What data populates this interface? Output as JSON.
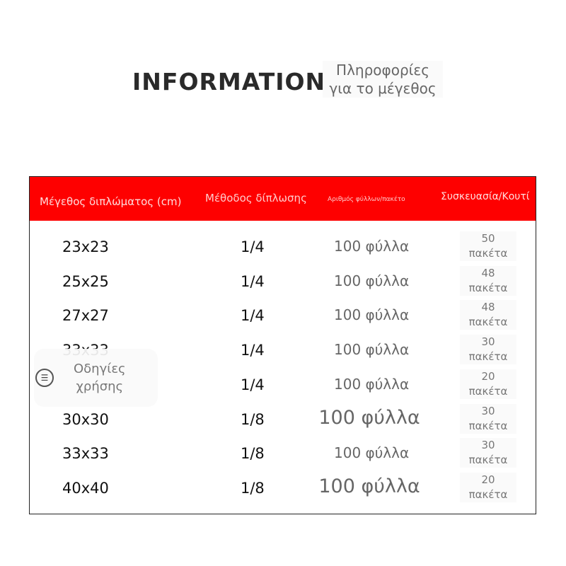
{
  "header": {
    "title": "INFORMATION",
    "subtitle_line1": "Πληροφορίες",
    "subtitle_line2": "για το μέγεθος"
  },
  "table": {
    "columns": [
      "Μέγεθος διπλώματος (cm)",
      "Μέθοδος δίπλωσης",
      "Αριθμός φύλλων/πακέτο",
      "Συσκευασία/Κουτί"
    ],
    "rows": [
      {
        "size": "23x23",
        "fold": "1/4",
        "sheets": "100 φύλλα",
        "pack_num": "50",
        "pack_unit": "πακέτα"
      },
      {
        "size": "25x25",
        "fold": "1/4",
        "sheets": "100 φύλλα",
        "pack_num": "48",
        "pack_unit": "πακέτα"
      },
      {
        "size": "27x27",
        "fold": "1/4",
        "sheets": "100 φύλλα",
        "pack_num": "48",
        "pack_unit": "πακέτα"
      },
      {
        "size": "33x33",
        "fold": "1/4",
        "sheets": "100 φύλλα",
        "pack_num": "30",
        "pack_unit": "πακέτα"
      },
      {
        "size": "",
        "fold": "1/4",
        "sheets": "100 φύλλα",
        "pack_num": "20",
        "pack_unit": "πακέτα"
      },
      {
        "size": "30x30",
        "fold": "1/8",
        "sheets": "100 φύλλα",
        "pack_num": "30",
        "pack_unit": "πακέτα"
      },
      {
        "size": "33x33",
        "fold": "1/8",
        "sheets": "100 φύλλα",
        "pack_num": "30",
        "pack_unit": "πακέτα"
      },
      {
        "size": "40x40",
        "fold": "1/8",
        "sheets": "100 φύλλα",
        "pack_num": "20",
        "pack_unit": "πακέτα"
      }
    ]
  },
  "guide_button": {
    "icon": "list-icon",
    "line1": "Οδηγίες",
    "line2": "χρήσης"
  },
  "colors": {
    "header_bg": "#fe0000"
  }
}
